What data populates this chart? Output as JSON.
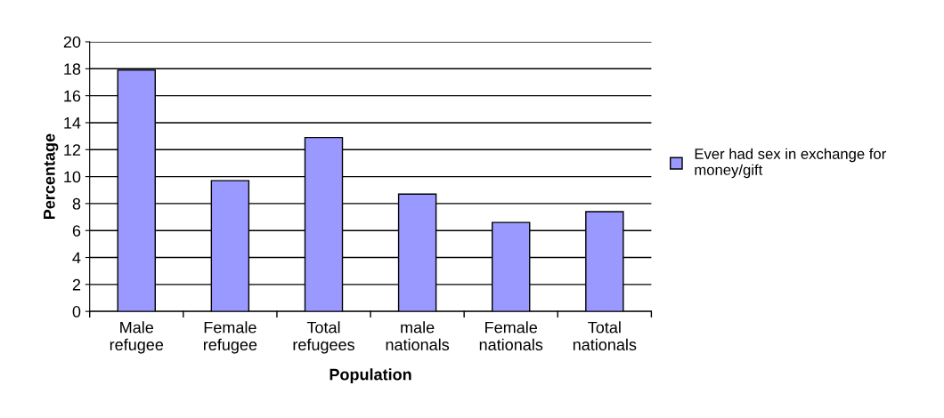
{
  "chart_data": {
    "type": "bar",
    "xlabel": "Population",
    "ylabel": "Percentage",
    "categories": [
      "Male\nrefugee",
      "Female\nrefugee",
      "Total\nrefugees",
      "male\nnationals",
      "Female\nnationals",
      "Total\nnationals"
    ],
    "series": [
      {
        "name": "Ever had sex in exchange for\nmoney/gift",
        "color": "#9999ff",
        "values": [
          17.9,
          9.7,
          12.9,
          8.7,
          6.6,
          7.4
        ]
      }
    ],
    "ylim": [
      0,
      20
    ],
    "yticks": [
      0,
      2,
      4,
      6,
      8,
      10,
      12,
      14,
      16,
      18,
      20
    ],
    "grid": "y",
    "legend": "right"
  }
}
